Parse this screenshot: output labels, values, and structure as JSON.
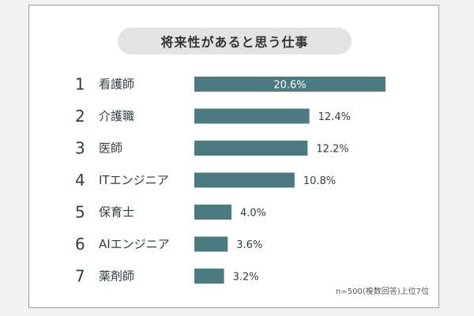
{
  "chart_data": {
    "type": "bar",
    "orientation": "horizontal",
    "title": "将来性があると思う仕事",
    "ranks": [
      "1",
      "2",
      "3",
      "4",
      "5",
      "6",
      "7"
    ],
    "categories": [
      "看護師",
      "介護職",
      "医師",
      "ITエンジニア",
      "保育士",
      "AIエンジニア",
      "薬剤師"
    ],
    "values": [
      20.6,
      12.4,
      12.2,
      10.8,
      4.0,
      3.6,
      3.2
    ],
    "value_labels": [
      "20.6%",
      "12.4%",
      "12.2%",
      "10.8%",
      "4.0%",
      "3.6%",
      "3.2%"
    ],
    "bar_color": "#4b7a80",
    "grid": false,
    "note": "n=500(複数回答)上位7位"
  }
}
